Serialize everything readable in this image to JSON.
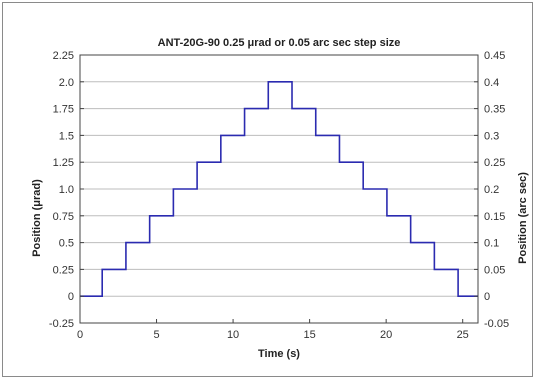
{
  "chart_data": {
    "type": "line",
    "title": "ANT-20G-90 0.25 μrad or 0.05 arc sec step size",
    "xlabel": "Time (s)",
    "ylabel": "Position (μrad)",
    "y2label": "Position (arc sec)",
    "xlim": [
      0,
      26
    ],
    "ylim": [
      -0.25,
      2.25
    ],
    "y2lim": [
      -0.05,
      0.45
    ],
    "x_ticks": [
      "0",
      "5",
      "10",
      "15",
      "20",
      "25"
    ],
    "y_ticks": [
      "-0.25",
      "0",
      "0.25",
      "0.5",
      "0.75",
      "1.0",
      "1.25",
      "1.5",
      "1.75",
      "2.0",
      "2.25"
    ],
    "y2_ticks": [
      "-0.05",
      "0",
      "0.05",
      "0.1",
      "0.15",
      "0.2",
      "0.25",
      "0.3",
      "0.35",
      "0.4",
      "0.45"
    ],
    "grid": "horizontal",
    "line_color": "#2b2bb0",
    "series": [
      {
        "x": [
          0,
          1.45,
          1.45,
          3.0,
          3.0,
          4.55,
          4.55,
          6.1,
          6.1,
          7.65,
          7.65,
          9.2,
          9.2,
          10.75,
          10.75,
          12.3,
          12.3,
          13.85,
          13.85,
          15.4,
          15.4,
          16.95,
          16.95,
          18.5,
          18.5,
          20.05,
          20.05,
          21.6,
          21.6,
          23.15,
          23.15,
          24.7,
          24.7,
          26
        ],
        "y": [
          0,
          0,
          0.25,
          0.25,
          0.5,
          0.5,
          0.75,
          0.75,
          1.0,
          1.0,
          1.25,
          1.25,
          1.5,
          1.5,
          1.75,
          1.75,
          2.0,
          2.0,
          1.75,
          1.75,
          1.5,
          1.5,
          1.25,
          1.25,
          1.0,
          1.0,
          0.75,
          0.75,
          0.5,
          0.5,
          0.25,
          0.25,
          0,
          0
        ]
      }
    ]
  }
}
